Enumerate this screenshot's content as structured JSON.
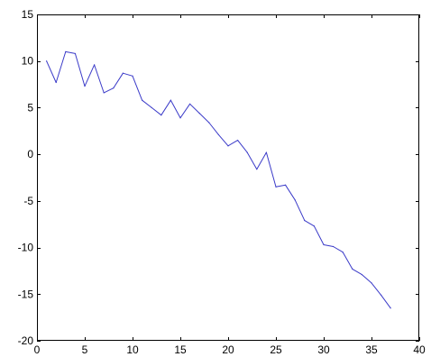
{
  "chart_data": {
    "type": "line",
    "title": "",
    "xlabel": "",
    "ylabel": "",
    "xlim": [
      0,
      40
    ],
    "ylim": [
      -20,
      15
    ],
    "x_ticks": [
      0,
      5,
      10,
      15,
      20,
      25,
      30,
      35,
      40
    ],
    "y_ticks": [
      15,
      10,
      5,
      0,
      -5,
      -10,
      -15,
      -20
    ],
    "x_tick_labels": [
      "0",
      "5",
      "10",
      "15",
      "20",
      "25",
      "30",
      "35",
      "40"
    ],
    "y_tick_labels": [
      "15",
      "10",
      "5",
      "0",
      "-5",
      "-10",
      "-15",
      "-20"
    ],
    "grid": false,
    "legend": "none",
    "series": [
      {
        "color": "#3a3ac8",
        "x": [
          1,
          2,
          3,
          4,
          5,
          6,
          7,
          8,
          9,
          10,
          11,
          12,
          13,
          14,
          15,
          16,
          17,
          18,
          19,
          20,
          21,
          22,
          23,
          24,
          25,
          26,
          27,
          28,
          29,
          30,
          31,
          32,
          33,
          34,
          35,
          36,
          37
        ],
        "y": [
          10.0,
          7.7,
          11.0,
          10.8,
          7.3,
          9.6,
          6.6,
          7.1,
          8.7,
          8.4,
          5.8,
          5.0,
          4.2,
          5.8,
          3.9,
          5.4,
          4.4,
          3.4,
          2.1,
          0.9,
          1.5,
          0.2,
          -1.6,
          0.2,
          -3.5,
          -3.3,
          -4.9,
          -7.1,
          -7.7,
          -9.7,
          -9.9,
          -10.5,
          -12.3,
          -12.9,
          -13.8,
          -15.1,
          -16.5
        ]
      }
    ]
  }
}
